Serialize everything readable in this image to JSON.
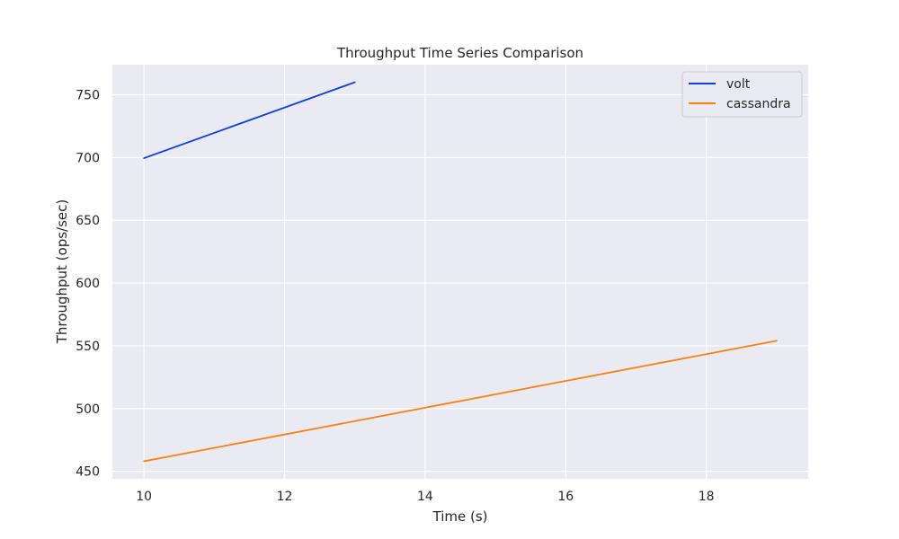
{
  "chart_data": {
    "type": "line",
    "title": "Throughput Time Series Comparison",
    "xlabel": "Time (s)",
    "ylabel": "Throughput (ops/sec)",
    "xlim": [
      9.55,
      19.45
    ],
    "ylim": [
      444,
      774
    ],
    "xticks": [
      10,
      12,
      14,
      16,
      18
    ],
    "yticks": [
      450,
      500,
      550,
      600,
      650,
      700,
      750
    ],
    "grid": true,
    "legend_position": "top-right",
    "series": [
      {
        "name": "volt",
        "color": "#0b3ee8",
        "x": [
          10,
          13
        ],
        "y": [
          699.5,
          760
        ]
      },
      {
        "name": "cassandra",
        "color": "#ff7f0e",
        "x": [
          10,
          19
        ],
        "y": [
          458,
          554
        ]
      }
    ]
  }
}
